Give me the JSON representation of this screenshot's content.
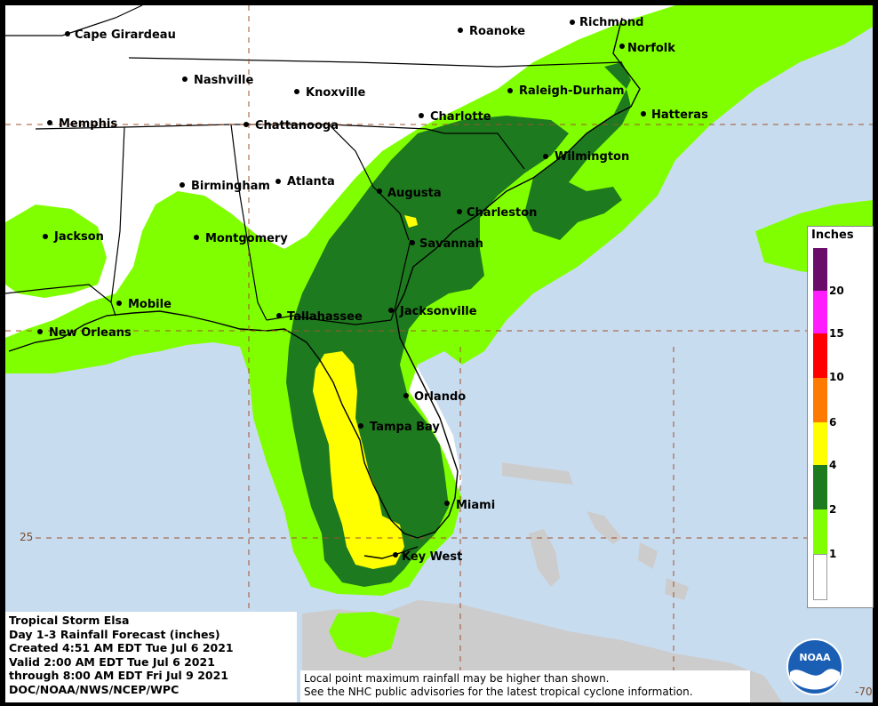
{
  "title_block": {
    "line1": "Tropical Storm Elsa",
    "line2": "Day 1-3 Rainfall Forecast (inches)",
    "line3": "Created 4:51 AM EDT Tue Jul 6 2021",
    "line4": "Valid 2:00 AM EDT Tue Jul 6 2021",
    "line5": "through 8:00 AM EDT Fri Jul 9 2021",
    "line6": "DOC/NOAA/NWS/NCEP/WPC"
  },
  "note": {
    "line1": "Local point maximum rainfall may be higher than shown.",
    "line2": "See the NHC public advisories for the latest tropical cyclone information."
  },
  "legend": {
    "title": "Inches",
    "levels": [
      {
        "label": "20",
        "color": "#6a0c6a"
      },
      {
        "label": "15",
        "color": "#ff1cff"
      },
      {
        "label": "10",
        "color": "#ff0000"
      },
      {
        "label": "6",
        "color": "#ff7a00"
      },
      {
        "label": "4",
        "color": "#ffff00"
      },
      {
        "label": "2",
        "color": "#1e7a1e"
      },
      {
        "label": "1",
        "color": "#80ff00"
      }
    ]
  },
  "grid_labels": {
    "lat25": "25",
    "lon70": "-70"
  },
  "cities": [
    {
      "id": "cape-girardeau",
      "label": "Cape Girardeau"
    },
    {
      "id": "roanoke",
      "label": "Roanoke"
    },
    {
      "id": "richmond",
      "label": "Richmond"
    },
    {
      "id": "norfolk",
      "label": "Norfolk"
    },
    {
      "id": "nashville",
      "label": "Nashville"
    },
    {
      "id": "knoxville",
      "label": "Knoxville"
    },
    {
      "id": "raleigh-durham",
      "label": "Raleigh-Durham"
    },
    {
      "id": "memphis",
      "label": "Memphis"
    },
    {
      "id": "chattanooga",
      "label": "Chattanooga"
    },
    {
      "id": "charlotte",
      "label": "Charlotte"
    },
    {
      "id": "hatteras",
      "label": "Hatteras"
    },
    {
      "id": "wilmington",
      "label": "Wilmington"
    },
    {
      "id": "birmingham",
      "label": "Birmingham"
    },
    {
      "id": "atlanta",
      "label": "Atlanta"
    },
    {
      "id": "augusta",
      "label": "Augusta"
    },
    {
      "id": "charleston",
      "label": "Charleston"
    },
    {
      "id": "jackson",
      "label": "Jackson"
    },
    {
      "id": "montgomery",
      "label": "Montgomery"
    },
    {
      "id": "savannah",
      "label": "Savannah"
    },
    {
      "id": "mobile",
      "label": "Mobile"
    },
    {
      "id": "tallahassee",
      "label": "Tallahassee"
    },
    {
      "id": "jacksonville",
      "label": "Jacksonville"
    },
    {
      "id": "new-orleans",
      "label": "New Orleans"
    },
    {
      "id": "orlando",
      "label": "Orlando"
    },
    {
      "id": "tampa-bay",
      "label": "Tampa Bay"
    },
    {
      "id": "miami",
      "label": "Miami"
    },
    {
      "id": "key-west",
      "label": "Key West"
    }
  ],
  "colors": {
    "ocean": "#c8dcf0",
    "land": "#ffffff",
    "land_foreign": "#cccccc",
    "rain_1": "#80ff00",
    "rain_2": "#1e7a1e",
    "rain_4": "#ffff00"
  },
  "logo": {
    "text": "NOAA"
  }
}
